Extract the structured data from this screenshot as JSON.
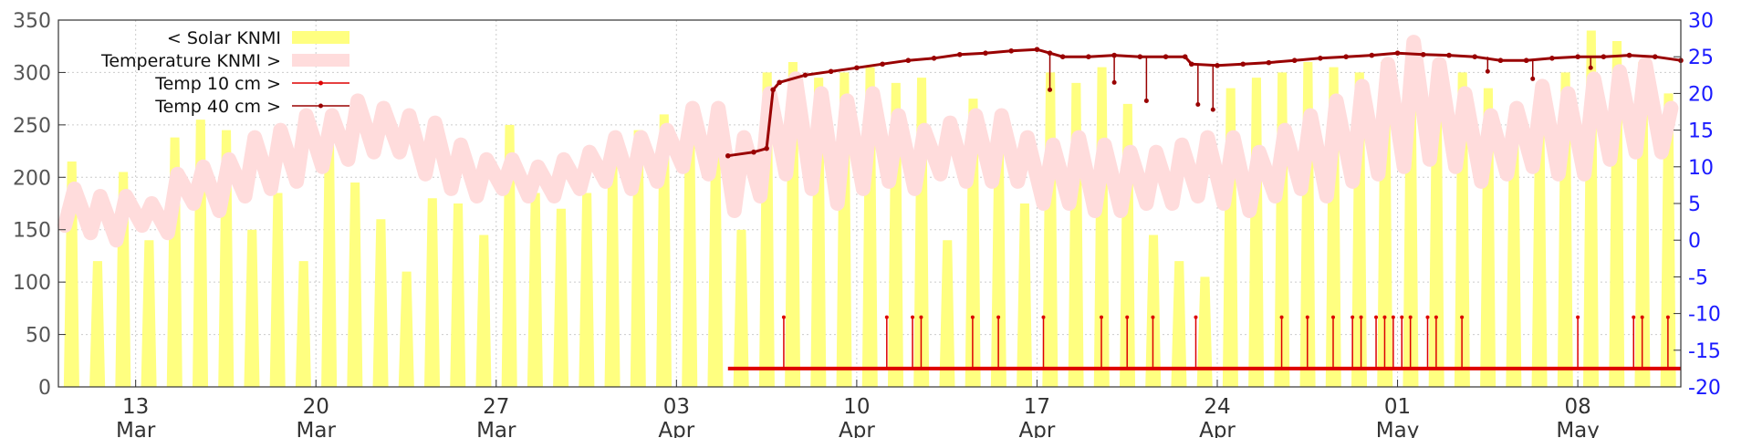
{
  "chart_data": {
    "type": "line",
    "title": "",
    "xlabel": "",
    "ylabel": "",
    "x_range": [
      "2024-03-10T00:00",
      "2024-05-12T00:00"
    ],
    "y_left": {
      "range": [
        0,
        350
      ],
      "ticks": [
        0,
        50,
        100,
        150,
        200,
        250,
        300,
        350
      ]
    },
    "y_right": {
      "range": [
        -20,
        30
      ],
      "ticks": [
        -20,
        -15,
        -10,
        -5,
        0,
        5,
        10,
        15,
        20,
        25,
        30
      ]
    },
    "x_ticks": [
      {
        "date": "2024-03-13",
        "day": "13",
        "month": "Mar"
      },
      {
        "date": "2024-03-20",
        "day": "20",
        "month": "Mar"
      },
      {
        "date": "2024-03-27",
        "day": "27",
        "month": "Mar"
      },
      {
        "date": "2024-04-03",
        "day": "03",
        "month": "Apr"
      },
      {
        "date": "2024-04-10",
        "day": "10",
        "month": "Apr"
      },
      {
        "date": "2024-04-17",
        "day": "17",
        "month": "Apr"
      },
      {
        "date": "2024-04-24",
        "day": "24",
        "month": "Apr"
      },
      {
        "date": "2024-05-01",
        "day": "01",
        "month": "May"
      },
      {
        "date": "2024-05-08",
        "day": "08",
        "month": "May"
      }
    ],
    "grid": true,
    "legend_position": "top-left",
    "series": [
      {
        "name": "< Solar KNMI",
        "axis": "left",
        "style": "filled daily peaks",
        "color": "#ffff80",
        "daily_peaks": [
          {
            "date": "2024-03-10",
            "value": 215
          },
          {
            "date": "2024-03-11",
            "value": 120
          },
          {
            "date": "2024-03-12",
            "value": 205
          },
          {
            "date": "2024-03-13",
            "value": 140
          },
          {
            "date": "2024-03-14",
            "value": 238
          },
          {
            "date": "2024-03-15",
            "value": 255
          },
          {
            "date": "2024-03-16",
            "value": 245
          },
          {
            "date": "2024-03-17",
            "value": 150
          },
          {
            "date": "2024-03-18",
            "value": 185
          },
          {
            "date": "2024-03-19",
            "value": 120
          },
          {
            "date": "2024-03-20",
            "value": 240
          },
          {
            "date": "2024-03-21",
            "value": 195
          },
          {
            "date": "2024-03-22",
            "value": 160
          },
          {
            "date": "2024-03-23",
            "value": 110
          },
          {
            "date": "2024-03-24",
            "value": 180
          },
          {
            "date": "2024-03-25",
            "value": 175
          },
          {
            "date": "2024-03-26",
            "value": 145
          },
          {
            "date": "2024-03-27",
            "value": 250
          },
          {
            "date": "2024-03-28",
            "value": 185
          },
          {
            "date": "2024-03-29",
            "value": 170
          },
          {
            "date": "2024-03-30",
            "value": 185
          },
          {
            "date": "2024-03-31",
            "value": 220
          },
          {
            "date": "2024-04-01",
            "value": 245
          },
          {
            "date": "2024-04-02",
            "value": 260
          },
          {
            "date": "2024-04-03",
            "value": 265
          },
          {
            "date": "2024-04-04",
            "value": 240
          },
          {
            "date": "2024-04-05",
            "value": 150
          },
          {
            "date": "2024-04-06",
            "value": 300
          },
          {
            "date": "2024-04-07",
            "value": 310
          },
          {
            "date": "2024-04-08",
            "value": 295
          },
          {
            "date": "2024-04-09",
            "value": 300
          },
          {
            "date": "2024-04-10",
            "value": 305
          },
          {
            "date": "2024-04-11",
            "value": 290
          },
          {
            "date": "2024-04-12",
            "value": 295
          },
          {
            "date": "2024-04-13",
            "value": 140
          },
          {
            "date": "2024-04-14",
            "value": 275
          },
          {
            "date": "2024-04-15",
            "value": 240
          },
          {
            "date": "2024-04-16",
            "value": 175
          },
          {
            "date": "2024-04-17",
            "value": 300
          },
          {
            "date": "2024-04-18",
            "value": 290
          },
          {
            "date": "2024-04-19",
            "value": 305
          },
          {
            "date": "2024-04-20",
            "value": 270
          },
          {
            "date": "2024-04-21",
            "value": 145
          },
          {
            "date": "2024-04-22",
            "value": 120
          },
          {
            "date": "2024-04-23",
            "value": 105
          },
          {
            "date": "2024-04-24",
            "value": 285
          },
          {
            "date": "2024-04-25",
            "value": 295
          },
          {
            "date": "2024-04-26",
            "value": 300
          },
          {
            "date": "2024-04-27",
            "value": 310
          },
          {
            "date": "2024-04-28",
            "value": 305
          },
          {
            "date": "2024-04-29",
            "value": 300
          },
          {
            "date": "2024-04-30",
            "value": 310
          },
          {
            "date": "2024-05-01",
            "value": 320
          },
          {
            "date": "2024-05-02",
            "value": 305
          },
          {
            "date": "2024-05-03",
            "value": 300
          },
          {
            "date": "2024-05-04",
            "value": 285
          },
          {
            "date": "2024-05-05",
            "value": 250
          },
          {
            "date": "2024-05-06",
            "value": 260
          },
          {
            "date": "2024-05-07",
            "value": 300
          },
          {
            "date": "2024-05-08",
            "value": 340
          },
          {
            "date": "2024-05-09",
            "value": 330
          },
          {
            "date": "2024-05-10",
            "value": 310
          },
          {
            "date": "2024-05-11",
            "value": 280
          }
        ]
      },
      {
        "name": "Temperature KNMI >",
        "axis": "right",
        "style": "thick band",
        "color": "#ffdcdc",
        "daily_minmax": [
          {
            "date": "2024-03-10",
            "min": 2,
            "max": 7
          },
          {
            "date": "2024-03-11",
            "min": 1,
            "max": 6
          },
          {
            "date": "2024-03-12",
            "min": 0,
            "max": 6
          },
          {
            "date": "2024-03-13",
            "min": 2,
            "max": 5
          },
          {
            "date": "2024-03-14",
            "min": 1,
            "max": 9
          },
          {
            "date": "2024-03-15",
            "min": 5,
            "max": 10
          },
          {
            "date": "2024-03-16",
            "min": 4,
            "max": 11
          },
          {
            "date": "2024-03-17",
            "min": 6,
            "max": 14
          },
          {
            "date": "2024-03-18",
            "min": 7,
            "max": 15
          },
          {
            "date": "2024-03-19",
            "min": 8,
            "max": 17
          },
          {
            "date": "2024-03-20",
            "min": 10,
            "max": 17
          },
          {
            "date": "2024-03-21",
            "min": 11,
            "max": 19
          },
          {
            "date": "2024-03-22",
            "min": 12,
            "max": 18
          },
          {
            "date": "2024-03-23",
            "min": 12,
            "max": 17
          },
          {
            "date": "2024-03-24",
            "min": 9,
            "max": 16
          },
          {
            "date": "2024-03-25",
            "min": 7,
            "max": 13
          },
          {
            "date": "2024-03-26",
            "min": 6,
            "max": 11
          },
          {
            "date": "2024-03-27",
            "min": 7,
            "max": 11
          },
          {
            "date": "2024-03-28",
            "min": 6,
            "max": 10
          },
          {
            "date": "2024-03-29",
            "min": 6,
            "max": 11
          },
          {
            "date": "2024-03-30",
            "min": 7,
            "max": 12
          },
          {
            "date": "2024-03-31",
            "min": 8,
            "max": 14
          },
          {
            "date": "2024-04-01",
            "min": 7,
            "max": 14
          },
          {
            "date": "2024-04-02",
            "min": 8,
            "max": 15
          },
          {
            "date": "2024-04-03",
            "min": 10,
            "max": 18
          },
          {
            "date": "2024-04-04",
            "min": 9,
            "max": 18
          },
          {
            "date": "2024-04-05",
            "min": 4,
            "max": 14
          },
          {
            "date": "2024-04-06",
            "min": 6,
            "max": 20
          },
          {
            "date": "2024-04-07",
            "min": 9,
            "max": 22
          },
          {
            "date": "2024-04-08",
            "min": 7,
            "max": 20
          },
          {
            "date": "2024-04-09",
            "min": 5,
            "max": 19
          },
          {
            "date": "2024-04-10",
            "min": 7,
            "max": 20
          },
          {
            "date": "2024-04-11",
            "min": 8,
            "max": 17
          },
          {
            "date": "2024-04-12",
            "min": 7,
            "max": 15
          },
          {
            "date": "2024-04-13",
            "min": 9,
            "max": 16
          },
          {
            "date": "2024-04-14",
            "min": 8,
            "max": 17
          },
          {
            "date": "2024-04-15",
            "min": 8,
            "max": 17
          },
          {
            "date": "2024-04-16",
            "min": 8,
            "max": 14
          },
          {
            "date": "2024-04-17",
            "min": 5,
            "max": 13
          },
          {
            "date": "2024-04-18",
            "min": 5,
            "max": 14
          },
          {
            "date": "2024-04-19",
            "min": 4,
            "max": 13
          },
          {
            "date": "2024-04-20",
            "min": 4,
            "max": 12
          },
          {
            "date": "2024-04-21",
            "min": 5,
            "max": 12
          },
          {
            "date": "2024-04-22",
            "min": 5,
            "max": 13
          },
          {
            "date": "2024-04-23",
            "min": 6,
            "max": 14
          },
          {
            "date": "2024-04-24",
            "min": 5,
            "max": 14
          },
          {
            "date": "2024-04-25",
            "min": 4,
            "max": 12
          },
          {
            "date": "2024-04-26",
            "min": 6,
            "max": 15
          },
          {
            "date": "2024-04-27",
            "min": 7,
            "max": 17
          },
          {
            "date": "2024-04-28",
            "min": 6,
            "max": 19
          },
          {
            "date": "2024-04-29",
            "min": 8,
            "max": 21
          },
          {
            "date": "2024-04-30",
            "min": 9,
            "max": 24
          },
          {
            "date": "2024-05-01",
            "min": 10,
            "max": 27
          },
          {
            "date": "2024-05-02",
            "min": 11,
            "max": 24
          },
          {
            "date": "2024-05-03",
            "min": 10,
            "max": 20
          },
          {
            "date": "2024-05-04",
            "min": 8,
            "max": 17
          },
          {
            "date": "2024-05-05",
            "min": 9,
            "max": 18
          },
          {
            "date": "2024-05-06",
            "min": 10,
            "max": 21
          },
          {
            "date": "2024-05-07",
            "min": 9,
            "max": 20
          },
          {
            "date": "2024-05-08",
            "min": 9,
            "max": 22
          },
          {
            "date": "2024-05-09",
            "min": 11,
            "max": 23
          },
          {
            "date": "2024-05-10",
            "min": 12,
            "max": 24
          },
          {
            "date": "2024-05-11",
            "min": 12,
            "max": 18
          }
        ]
      },
      {
        "name": "Temp 10 cm >",
        "axis": "right",
        "style": "line with markers",
        "color": "#dd0000",
        "baseline": -17.5,
        "spike_value": -10.5,
        "start": "2024-04-05T00:00",
        "end": "2024-05-12T00:00",
        "spikes": [
          "2024-04-07T04:00",
          "2024-04-11T04:00",
          "2024-04-12T04:00",
          "2024-04-12T12:00",
          "2024-04-14T12:00",
          "2024-04-15T12:00",
          "2024-04-17T06:00",
          "2024-04-19T12:00",
          "2024-04-20T12:00",
          "2024-04-21T12:00",
          "2024-04-23T04:00",
          "2024-04-26T12:00",
          "2024-04-27T12:00",
          "2024-04-28T12:00",
          "2024-04-29T06:00",
          "2024-04-29T14:00",
          "2024-04-30T04:00",
          "2024-04-30T12:00",
          "2024-04-30T20:00",
          "2024-05-01T04:00",
          "2024-05-01T12:00",
          "2024-05-02T04:00",
          "2024-05-02T12:00",
          "2024-05-03T12:00",
          "2024-05-08T00:00",
          "2024-05-10T04:00",
          "2024-05-10T12:00",
          "2024-05-11T12:00"
        ]
      },
      {
        "name": "Temp 40 cm >",
        "axis": "right",
        "style": "line with markers",
        "color": "#990000",
        "points": [
          {
            "t": "2024-04-05T00:00",
            "v": 11.5
          },
          {
            "t": "2024-04-06T00:00",
            "v": 12.0
          },
          {
            "t": "2024-04-06T12:00",
            "v": 12.5
          },
          {
            "t": "2024-04-06T18:00",
            "v": 20.5
          },
          {
            "t": "2024-04-07T00:00",
            "v": 21.5
          },
          {
            "t": "2024-04-08T00:00",
            "v": 22.5
          },
          {
            "t": "2024-04-09T00:00",
            "v": 23.0
          },
          {
            "t": "2024-04-10T00:00",
            "v": 23.5
          },
          {
            "t": "2024-04-11T00:00",
            "v": 24.0
          },
          {
            "t": "2024-04-12T00:00",
            "v": 24.5
          },
          {
            "t": "2024-04-13T00:00",
            "v": 24.8
          },
          {
            "t": "2024-04-14T00:00",
            "v": 25.3
          },
          {
            "t": "2024-04-15T00:00",
            "v": 25.5
          },
          {
            "t": "2024-04-16T00:00",
            "v": 25.8
          },
          {
            "t": "2024-04-17T00:00",
            "v": 26.0
          },
          {
            "t": "2024-04-17T12:00",
            "v": 25.5
          },
          {
            "t": "2024-04-18T00:00",
            "v": 25.0
          },
          {
            "t": "2024-04-19T00:00",
            "v": 25.0
          },
          {
            "t": "2024-04-20T00:00",
            "v": 25.2
          },
          {
            "t": "2024-04-21T00:00",
            "v": 25.0
          },
          {
            "t": "2024-04-22T00:00",
            "v": 25.0
          },
          {
            "t": "2024-04-22T18:00",
            "v": 25.0
          },
          {
            "t": "2024-04-23T00:00",
            "v": 24.0
          },
          {
            "t": "2024-04-24T00:00",
            "v": 23.8
          },
          {
            "t": "2024-04-25T00:00",
            "v": 24.0
          },
          {
            "t": "2024-04-26T00:00",
            "v": 24.2
          },
          {
            "t": "2024-04-27T00:00",
            "v": 24.5
          },
          {
            "t": "2024-04-28T00:00",
            "v": 24.8
          },
          {
            "t": "2024-04-29T00:00",
            "v": 25.0
          },
          {
            "t": "2024-04-30T00:00",
            "v": 25.2
          },
          {
            "t": "2024-05-01T00:00",
            "v": 25.5
          },
          {
            "t": "2024-05-02T00:00",
            "v": 25.3
          },
          {
            "t": "2024-05-03T00:00",
            "v": 25.2
          },
          {
            "t": "2024-05-04T00:00",
            "v": 25.0
          },
          {
            "t": "2024-05-05T00:00",
            "v": 24.5
          },
          {
            "t": "2024-05-06T00:00",
            "v": 24.5
          },
          {
            "t": "2024-05-07T00:00",
            "v": 24.8
          },
          {
            "t": "2024-05-08T00:00",
            "v": 25.0
          },
          {
            "t": "2024-05-09T00:00",
            "v": 25.0
          },
          {
            "t": "2024-05-10T00:00",
            "v": 25.2
          },
          {
            "t": "2024-05-11T00:00",
            "v": 25.0
          },
          {
            "t": "2024-05-12T00:00",
            "v": 24.5
          }
        ],
        "dips": [
          {
            "t": "2024-04-17T12:00",
            "v": 20.5
          },
          {
            "t": "2024-04-20T00:00",
            "v": 21.5
          },
          {
            "t": "2024-04-21T06:00",
            "v": 19.0
          },
          {
            "t": "2024-04-23T06:00",
            "v": 18.5
          },
          {
            "t": "2024-04-23T20:00",
            "v": 17.8
          },
          {
            "t": "2024-05-04T12:00",
            "v": 23.0
          },
          {
            "t": "2024-05-06T06:00",
            "v": 22.0
          },
          {
            "t": "2024-05-08T12:00",
            "v": 23.5
          }
        ]
      }
    ]
  }
}
